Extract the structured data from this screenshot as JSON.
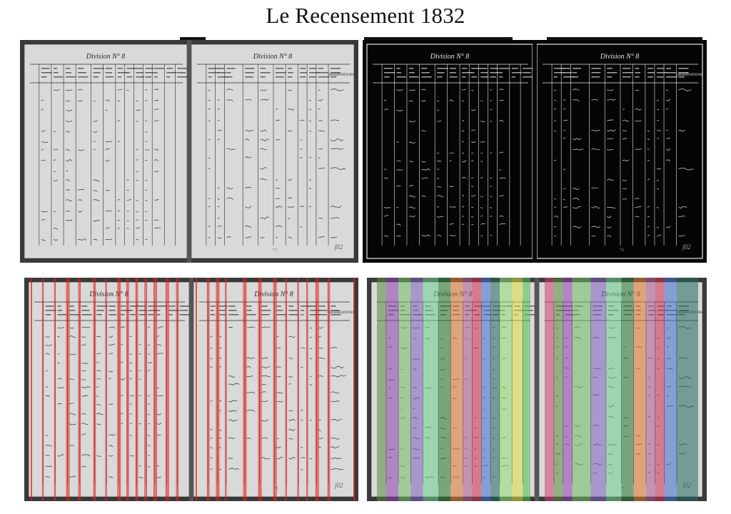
{
  "header": {
    "title": "Le Recensement 1832"
  },
  "document": {
    "left_page_heading": "Division N° 8",
    "right_page_heading": "Division N° 8",
    "observations_header": "OBSERVATIONS",
    "folio": "ſ02",
    "page_footer": "73"
  },
  "panels": [
    {
      "id": "original-scan",
      "style": "grayscale"
    },
    {
      "id": "binarized-scan",
      "style": "inverted-threshold"
    },
    {
      "id": "detected-column-lines",
      "style": "red-vertical-lines",
      "line_color": "#e02020"
    },
    {
      "id": "segmented-columns",
      "style": "colored-column-bands",
      "column_colors": [
        "#5a8a3a",
        "#9040b0",
        "#70c060",
        "#8060c0",
        "#70d090",
        "#2a7a30",
        "#e07a30",
        "#b05a90",
        "#d03050",
        "#4070d0",
        "#206a60",
        "#90e070",
        "#e0e040",
        "#50c050",
        "#d04070"
      ]
    }
  ],
  "colors": {
    "scan_background": "#cfcfcf",
    "ink": "#2a2a2a",
    "binarized_background": "#050505"
  }
}
